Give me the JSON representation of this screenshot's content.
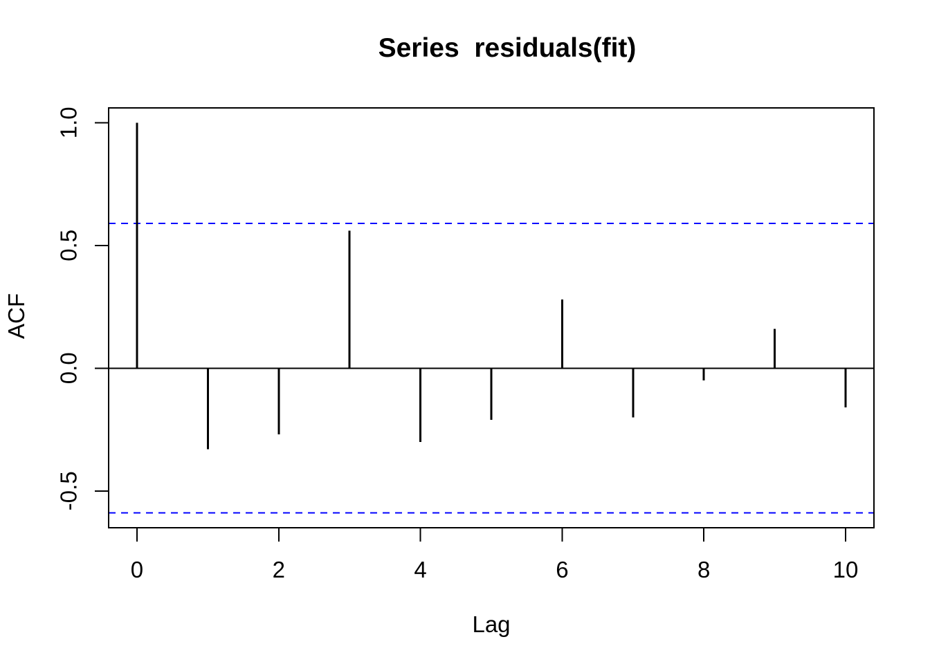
{
  "page": {
    "background": "#ffffff"
  },
  "chart_data": {
    "type": "bar",
    "subtype": "acf-stem-plot",
    "title": "Series  residuals(fit)",
    "xlabel": "Lag",
    "ylabel": "ACF",
    "x": [
      0,
      1,
      2,
      3,
      4,
      5,
      6,
      7,
      8,
      9,
      10
    ],
    "values": [
      1.0,
      -0.33,
      -0.27,
      0.56,
      -0.3,
      -0.21,
      0.28,
      -0.2,
      -0.05,
      0.16,
      -0.16
    ],
    "zero_line": 0,
    "conf_upper": 0.59,
    "conf_lower": -0.59,
    "xlim": [
      -0.4,
      10.4
    ],
    "ylim": [
      -0.65,
      1.06
    ],
    "x_ticks": [
      0,
      2,
      4,
      6,
      8,
      10
    ],
    "x_tick_labels": [
      "0",
      "2",
      "4",
      "6",
      "8",
      "10"
    ],
    "y_ticks": [
      -0.5,
      0.0,
      0.5,
      1.0
    ],
    "y_tick_labels": [
      "-0.5",
      "0.0",
      "0.5",
      "1.0"
    ],
    "grid": "off",
    "legend": "none",
    "colors": {
      "stem": "#000000",
      "zero_line": "#000000",
      "conf_line": "#0000ff",
      "frame": "#000000",
      "background": "#ffffff"
    }
  }
}
